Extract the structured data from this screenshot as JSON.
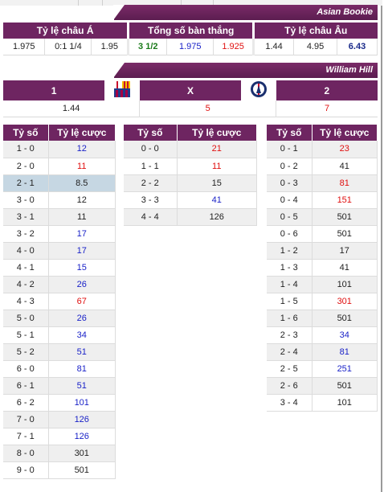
{
  "colors": {
    "header": "#6e2561",
    "highlight": "#c6d7e3"
  },
  "asian_bookie": {
    "title": "Asian Bookie",
    "headers": [
      "Tỷ lệ châu Á",
      "Tổng số bàn thắng",
      "Tỷ lệ châu Âu"
    ],
    "asian": [
      "1.975",
      "0:1 1/4",
      "1.95"
    ],
    "total": [
      "3 1/2",
      "1.975",
      "1.925"
    ],
    "euro": [
      "1.44",
      "4.95",
      "6.43"
    ]
  },
  "william_hill": {
    "title": "William Hill",
    "headers": {
      "home": "1",
      "draw": "X",
      "away": "2"
    },
    "home_logo": "barcelona-crest-icon",
    "away_logo": "psg-crest-icon",
    "values": {
      "home": "1.44",
      "draw": "5",
      "away": "7"
    }
  },
  "score_tables": {
    "col_score": "Tỷ số",
    "col_odds": "Tỷ lệ cược",
    "home": [
      {
        "score": "1 - 0",
        "odds": "12",
        "c": "blue"
      },
      {
        "score": "2 - 0",
        "odds": "11",
        "c": "red"
      },
      {
        "score": "2 - 1",
        "odds": "8.5",
        "c": "black"
      },
      {
        "score": "3 - 0",
        "odds": "12",
        "c": "black"
      },
      {
        "score": "3 - 1",
        "odds": "11",
        "c": "black"
      },
      {
        "score": "3 - 2",
        "odds": "17",
        "c": "blue"
      },
      {
        "score": "4 - 0",
        "odds": "17",
        "c": "blue"
      },
      {
        "score": "4 - 1",
        "odds": "15",
        "c": "blue"
      },
      {
        "score": "4 - 2",
        "odds": "26",
        "c": "blue"
      },
      {
        "score": "4 - 3",
        "odds": "67",
        "c": "red"
      },
      {
        "score": "5 - 0",
        "odds": "26",
        "c": "blue"
      },
      {
        "score": "5 - 1",
        "odds": "34",
        "c": "blue"
      },
      {
        "score": "5 - 2",
        "odds": "51",
        "c": "blue"
      },
      {
        "score": "6 - 0",
        "odds": "81",
        "c": "blue"
      },
      {
        "score": "6 - 1",
        "odds": "51",
        "c": "blue"
      },
      {
        "score": "6 - 2",
        "odds": "101",
        "c": "blue"
      },
      {
        "score": "7 - 0",
        "odds": "126",
        "c": "blue"
      },
      {
        "score": "7 - 1",
        "odds": "126",
        "c": "blue"
      },
      {
        "score": "8 - 0",
        "odds": "301",
        "c": "black"
      },
      {
        "score": "9 - 0",
        "odds": "501",
        "c": "black"
      }
    ],
    "draw": [
      {
        "score": "0 - 0",
        "odds": "21",
        "c": "red"
      },
      {
        "score": "1 - 1",
        "odds": "11",
        "c": "red"
      },
      {
        "score": "2 - 2",
        "odds": "15",
        "c": "black"
      },
      {
        "score": "3 - 3",
        "odds": "41",
        "c": "blue"
      },
      {
        "score": "4 - 4",
        "odds": "126",
        "c": "black"
      }
    ],
    "away": [
      {
        "score": "0 - 1",
        "odds": "23",
        "c": "red"
      },
      {
        "score": "0 - 2",
        "odds": "41",
        "c": "black"
      },
      {
        "score": "0 - 3",
        "odds": "81",
        "c": "red"
      },
      {
        "score": "0 - 4",
        "odds": "151",
        "c": "red"
      },
      {
        "score": "0 - 5",
        "odds": "501",
        "c": "black"
      },
      {
        "score": "0 - 6",
        "odds": "501",
        "c": "black"
      },
      {
        "score": "1 - 2",
        "odds": "17",
        "c": "black"
      },
      {
        "score": "1 - 3",
        "odds": "41",
        "c": "black"
      },
      {
        "score": "1 - 4",
        "odds": "101",
        "c": "black"
      },
      {
        "score": "1 - 5",
        "odds": "301",
        "c": "red"
      },
      {
        "score": "1 - 6",
        "odds": "501",
        "c": "black"
      },
      {
        "score": "2 - 3",
        "odds": "34",
        "c": "blue"
      },
      {
        "score": "2 - 4",
        "odds": "81",
        "c": "blue"
      },
      {
        "score": "2 - 5",
        "odds": "251",
        "c": "blue"
      },
      {
        "score": "2 - 6",
        "odds": "501",
        "c": "black"
      },
      {
        "score": "3 - 4",
        "odds": "101",
        "c": "black"
      }
    ]
  }
}
